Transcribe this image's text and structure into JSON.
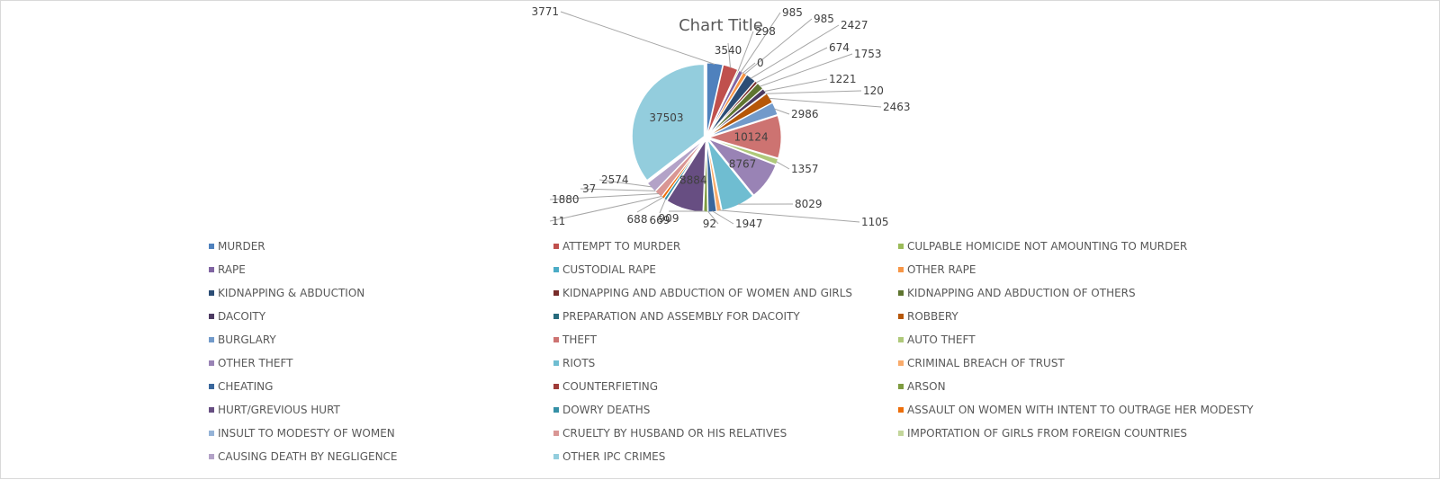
{
  "chart_data": {
    "type": "pie",
    "title": "Chart Title",
    "legend_position": "bottom",
    "categories": [
      "MURDER",
      "ATTEMPT TO MURDER",
      "CULPABLE HOMICIDE NOT AMOUNTING TO MURDER",
      "RAPE",
      "CUSTODIAL RAPE",
      "OTHER RAPE",
      "KIDNAPPING & ABDUCTION",
      "KIDNAPPING AND ABDUCTION OF WOMEN AND GIRLS",
      "KIDNAPPING AND ABDUCTION OF OTHERS",
      "DACOITY",
      "PREPARATION AND ASSEMBLY FOR DACOITY",
      "ROBBERY",
      "BURGLARY",
      "THEFT",
      "AUTO THEFT",
      "OTHER THEFT",
      "RIOTS",
      "CRIMINAL BREACH OF TRUST",
      "CHEATING",
      "COUNTERFIETING",
      "ARSON",
      "HURT/GREVIOUS HURT",
      "DOWRY DEATHS",
      "ASSAULT ON WOMEN WITH INTENT TO OUTRAGE HER MODESTY",
      "INSULT TO MODESTY OF WOMEN",
      "CRUELTY BY HUSBAND OR HIS RELATIVES",
      "IMPORTATION OF GIRLS FROM FOREIGN COUNTRIES",
      "CAUSING DEATH BY NEGLIGENCE",
      "OTHER IPC CRIMES"
    ],
    "values": [
      3771,
      3540,
      298,
      985,
      0,
      985,
      2427,
      674,
      1753,
      1221,
      120,
      2463,
      2986,
      10124,
      1357,
      8767,
      8029,
      1105,
      1947,
      92,
      909,
      8884,
      669,
      688,
      11,
      1880,
      37,
      2574,
      37503
    ],
    "colors": [
      "#4f81bd",
      "#c0504d",
      "#9bbb59",
      "#8064a2",
      "#4bacc6",
      "#f79646",
      "#2c4d75",
      "#772c2a",
      "#5f7530",
      "#4d3b62",
      "#276a7c",
      "#b65708",
      "#729aca",
      "#cd7371",
      "#afc97a",
      "#9983b5",
      "#6fbdd1",
      "#f9ab6b",
      "#3a679c",
      "#9f3b38",
      "#7e9c40",
      "#674e82",
      "#3590a6",
      "#ed6e0a",
      "#95b3d7",
      "#d99694",
      "#c3d69b",
      "#b3a2c7",
      "#93cddd"
    ]
  }
}
